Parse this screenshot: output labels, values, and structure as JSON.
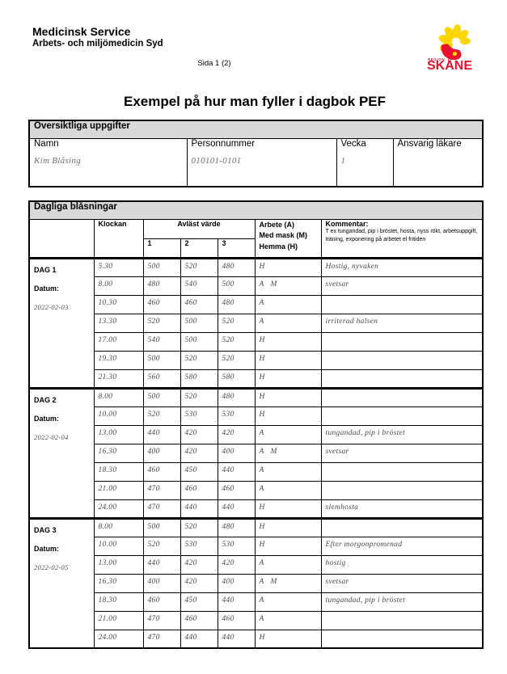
{
  "header": {
    "org_line1": "Medicinsk Service",
    "org_line2": "Arbets- och miljömedicin Syd",
    "page_label": "Sida 1 (2)",
    "logo": {
      "region": "REGION",
      "name": "SKÅNE"
    }
  },
  "title": "Exempel på hur man fyller i dagbok PEF",
  "colors": {
    "section_header_bg": "#d9d9d9",
    "logo_red": "#e8112d",
    "logo_yellow": "#fdd500",
    "handwriting": "#4a4a4a"
  },
  "overview": {
    "section_title": "Översiktliga uppgifter",
    "fields": [
      {
        "label": "Namn",
        "value": "Kim Blåsing"
      },
      {
        "label": "Personnummer",
        "value": "010101-0101"
      },
      {
        "label": "Vecka",
        "value": "1"
      },
      {
        "label": "Ansvarig läkare",
        "value": ""
      }
    ]
  },
  "diary": {
    "section_title": "Dagliga blåsningar",
    "columns": {
      "klockan": "Klockan",
      "avlast": "Avläst värde",
      "subcols": [
        "1",
        "2",
        "3"
      ],
      "arbete_lines": [
        "Arbete (A)",
        "Med mask (M)",
        "Hemma (H)"
      ],
      "kommentar_title": "Kommentar:",
      "kommentar_hint": "T ex tungandad, pip i bröstet, hosta, nyss rökt, arbetsuppgift, träning, exponering på arbetet el fritiden"
    },
    "days": [
      {
        "label": "DAG 1",
        "datum_label": "Datum:",
        "date": "2022-02-03",
        "rows": [
          {
            "time": "5.30",
            "v1": "500",
            "v2": "520",
            "v3": "480",
            "code": "H",
            "comment": "Hostig, nyvaken"
          },
          {
            "time": "8.00",
            "v1": "480",
            "v2": "540",
            "v3": "500",
            "code": "A   M",
            "comment": "svetsar"
          },
          {
            "time": "10.30",
            "v1": "460",
            "v2": "460",
            "v3": "480",
            "code": "A",
            "comment": ""
          },
          {
            "time": "13.30",
            "v1": "520",
            "v2": "500",
            "v3": "520",
            "code": "A",
            "comment": "irriterad halsen"
          },
          {
            "time": "17.00",
            "v1": "540",
            "v2": "500",
            "v3": "520",
            "code": "H",
            "comment": ""
          },
          {
            "time": "19.30",
            "v1": "500",
            "v2": "520",
            "v3": "520",
            "code": "H",
            "comment": ""
          },
          {
            "time": "21.30",
            "v1": "560",
            "v2": "580",
            "v3": "580",
            "code": "H",
            "comment": ""
          }
        ]
      },
      {
        "label": "DAG 2",
        "datum_label": "Datum:",
        "date": "2022-02-04",
        "rows": [
          {
            "time": "8.00",
            "v1": "500",
            "v2": "520",
            "v3": "480",
            "code": "H",
            "comment": ""
          },
          {
            "time": "10.00",
            "v1": "520",
            "v2": "530",
            "v3": "530",
            "code": "H",
            "comment": ""
          },
          {
            "time": "13.00",
            "v1": "440",
            "v2": "420",
            "v3": "420",
            "code": "A",
            "comment": "tungandad, pip i bröstet"
          },
          {
            "time": "16.30",
            "v1": "400",
            "v2": "420",
            "v3": "400",
            "code": "A   M",
            "comment": "svetsar"
          },
          {
            "time": "18.30",
            "v1": "460",
            "v2": "450",
            "v3": "440",
            "code": "A",
            "comment": ""
          },
          {
            "time": "21.00",
            "v1": "470",
            "v2": "460",
            "v3": "460",
            "code": "A",
            "comment": ""
          },
          {
            "time": "24.00",
            "v1": "470",
            "v2": "440",
            "v3": "440",
            "code": "H",
            "comment": "slemhosta"
          }
        ]
      },
      {
        "label": "DAG 3",
        "datum_label": "Datum:",
        "date": "2022-02-05",
        "rows": [
          {
            "time": "8.00",
            "v1": "500",
            "v2": "520",
            "v3": "480",
            "code": "H",
            "comment": ""
          },
          {
            "time": "10.00",
            "v1": "520",
            "v2": "530",
            "v3": "530",
            "code": "H",
            "comment": "Efter morgonpromenad"
          },
          {
            "time": "13.00",
            "v1": "440",
            "v2": "420",
            "v3": "420",
            "code": "A",
            "comment": "hostig"
          },
          {
            "time": "16.30",
            "v1": "400",
            "v2": "420",
            "v3": "400",
            "code": "A   M",
            "comment": "svetsar"
          },
          {
            "time": "18.30",
            "v1": "460",
            "v2": "450",
            "v3": "440",
            "code": "A",
            "comment": "tungandad, pip i bröstet"
          },
          {
            "time": "21.00",
            "v1": "470",
            "v2": "460",
            "v3": "460",
            "code": "A",
            "comment": ""
          },
          {
            "time": "24.00",
            "v1": "470",
            "v2": "440",
            "v3": "440",
            "code": "H",
            "comment": ""
          }
        ]
      }
    ]
  }
}
